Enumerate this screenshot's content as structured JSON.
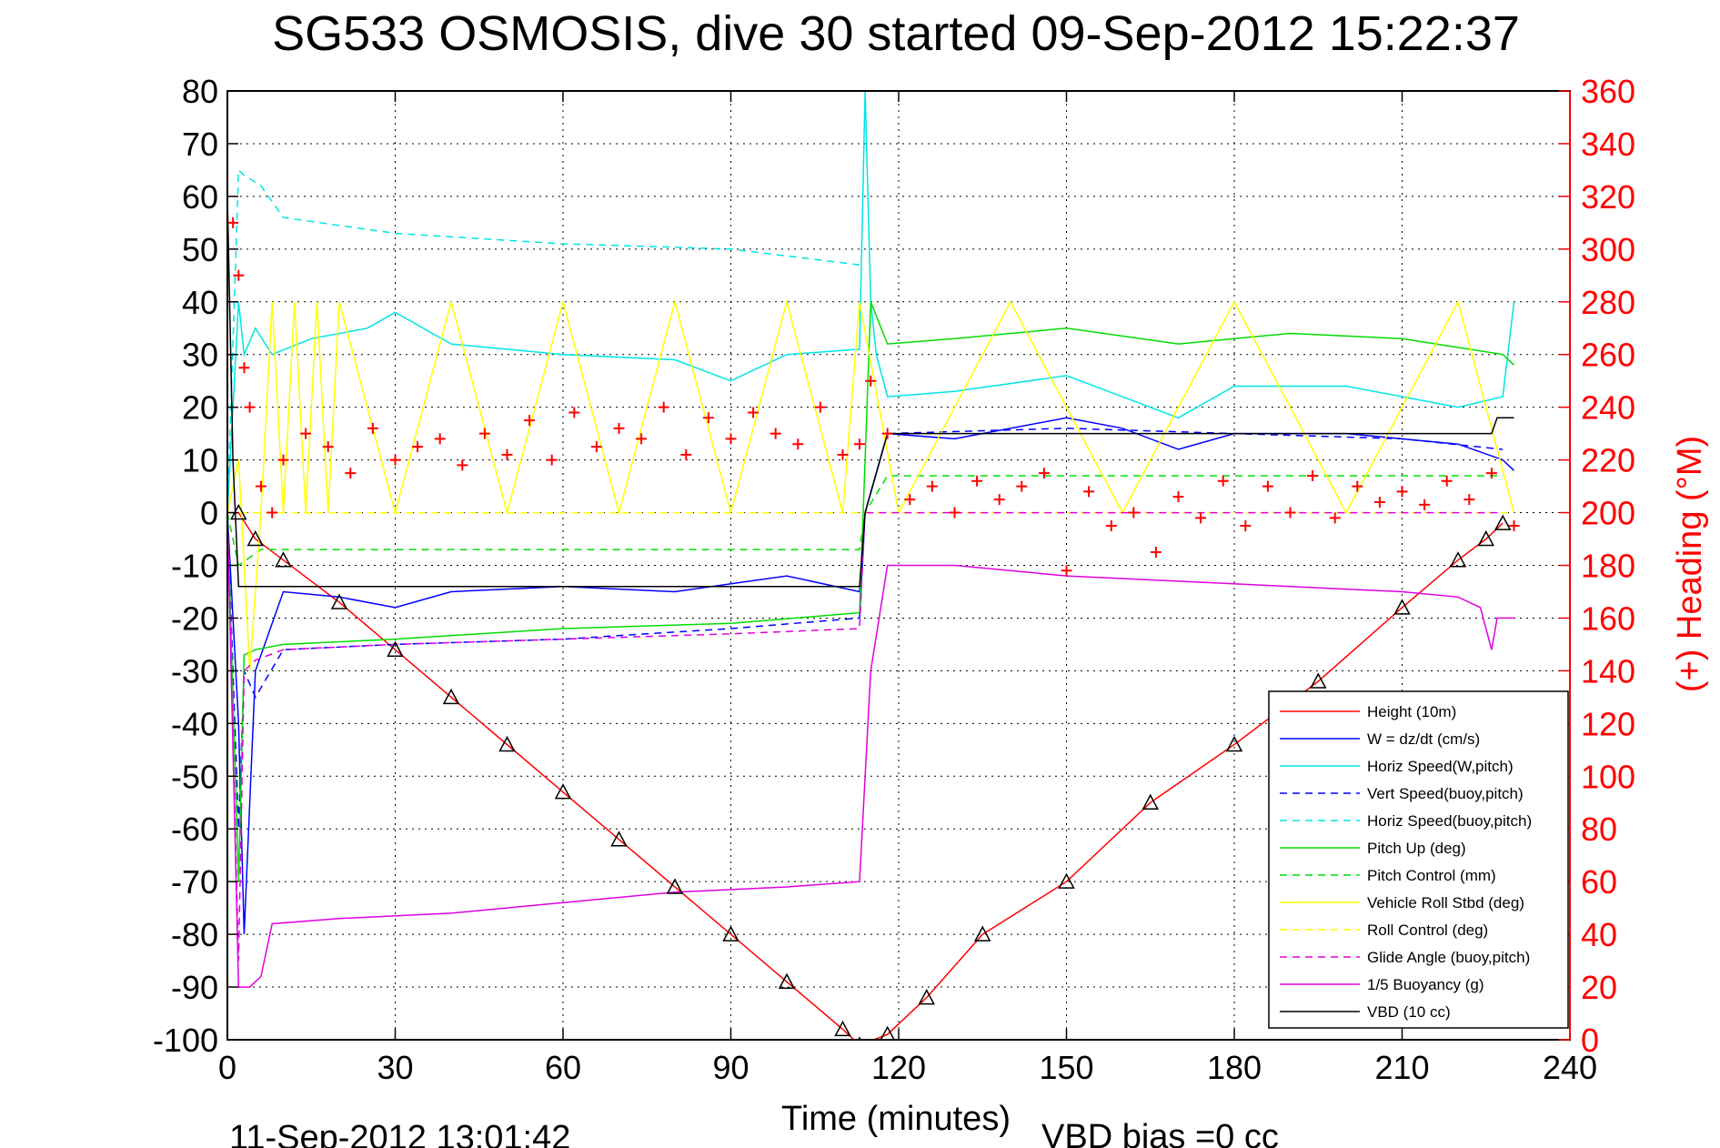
{
  "chart_data": {
    "type": "line",
    "title": "SG533 OSMOSIS, dive 30 started 09-Sep-2012 15:22:37",
    "xlabel": "Time (minutes)",
    "ylabel_right": "(+) Heading (°M)",
    "xlim": [
      0,
      240
    ],
    "ylim": [
      -100,
      80
    ],
    "ylim_right": [
      0,
      360
    ],
    "x_ticks": [
      0,
      30,
      60,
      90,
      120,
      150,
      180,
      210,
      240
    ],
    "y_ticks": [
      -100,
      -90,
      -80,
      -70,
      -60,
      -50,
      -40,
      -30,
      -20,
      -10,
      0,
      10,
      20,
      30,
      40,
      50,
      60,
      70,
      80
    ],
    "y_ticks_right": [
      0,
      20,
      40,
      60,
      80,
      100,
      120,
      140,
      160,
      180,
      200,
      220,
      240,
      260,
      280,
      300,
      320,
      340,
      360
    ],
    "grid": true,
    "legend_position": "bottom-right",
    "footer_left": "11-Sep-2012 13:01:42",
    "footer_right": "VBD bias =0 cc",
    "series": [
      {
        "name": "Height (10m)",
        "color": "#ff0000",
        "style": "solid",
        "x": [
          0,
          2,
          5,
          10,
          20,
          30,
          40,
          50,
          60,
          70,
          80,
          90,
          100,
          110,
          113,
          118,
          125,
          135,
          150,
          165,
          180,
          195,
          210,
          220,
          225,
          228
        ],
        "y": [
          0,
          0,
          -5,
          -9,
          -17,
          -26,
          -35,
          -44,
          -53,
          -62,
          -71,
          -80,
          -89,
          -98,
          -101,
          -99,
          -92,
          -80,
          -70,
          -55,
          -44,
          -32,
          -18,
          -9,
          -5,
          -2
        ]
      },
      {
        "name": "W = dz/dt (cm/s)",
        "color": "#0000ff",
        "style": "solid",
        "x": [
          0,
          2,
          3,
          5,
          10,
          20,
          30,
          40,
          60,
          80,
          100,
          113,
          114,
          118,
          130,
          150,
          160,
          170,
          180,
          200,
          220,
          228,
          230
        ],
        "y": [
          0,
          -40,
          -80,
          -30,
          -15,
          -16,
          -18,
          -15,
          -14,
          -15,
          -12,
          -15,
          0,
          15,
          14,
          18,
          16,
          12,
          15,
          15,
          13,
          10,
          8
        ]
      },
      {
        "name": "Horiz Speed(W,pitch)",
        "color": "#00e5e5",
        "style": "solid",
        "x": [
          0,
          2,
          3,
          5,
          8,
          15,
          25,
          30,
          40,
          60,
          80,
          90,
          100,
          113,
          114,
          115,
          116,
          118,
          130,
          150,
          160,
          170,
          180,
          200,
          220,
          228,
          230
        ],
        "y": [
          0,
          40,
          30,
          35,
          30,
          33,
          35,
          38,
          32,
          30,
          29,
          25,
          30,
          31,
          80,
          40,
          30,
          22,
          23,
          26,
          22,
          18,
          24,
          24,
          20,
          22,
          40
        ]
      },
      {
        "name": "Vert Speed(buoy,pitch)",
        "color": "#0000ff",
        "style": "dashed",
        "x": [
          0,
          2,
          3,
          5,
          10,
          30,
          60,
          90,
          113,
          114,
          118,
          150,
          180,
          210,
          228
        ],
        "y": [
          0,
          -60,
          -30,
          -35,
          -26,
          -25,
          -24,
          -22,
          -20,
          0,
          15,
          16,
          15,
          14,
          12
        ]
      },
      {
        "name": "Horiz Speed(buoy,pitch)",
        "color": "#00e5e5",
        "style": "dashed",
        "x": [
          0,
          2,
          3,
          6,
          10,
          30,
          60,
          90,
          113,
          114
        ],
        "y": [
          0,
          65,
          64,
          62,
          56,
          53,
          51,
          50,
          47,
          47
        ]
      },
      {
        "name": "Pitch Up (deg)",
        "color": "#00dd00",
        "style": "solid",
        "x": [
          0,
          2,
          3,
          5,
          10,
          30,
          60,
          90,
          113,
          114,
          115,
          118,
          130,
          150,
          170,
          190,
          210,
          228,
          230
        ],
        "y": [
          0,
          -70,
          -27,
          -26,
          -25,
          -24,
          -22,
          -21,
          -19,
          10,
          40,
          32,
          33,
          35,
          32,
          34,
          33,
          30,
          28
        ]
      },
      {
        "name": "Pitch Control (mm)",
        "color": "#00dd00",
        "style": "dashed",
        "x": [
          0,
          2,
          6,
          10,
          30,
          60,
          90,
          113,
          114,
          118,
          150,
          180,
          210,
          228
        ],
        "y": [
          0,
          -10,
          -7,
          -7,
          -7,
          -7,
          -7,
          -7,
          0,
          7,
          7,
          7,
          7,
          7
        ]
      },
      {
        "name": "Vehicle Roll Stbd (deg)",
        "color": "#ffff00",
        "style": "solid",
        "x": [
          0,
          2,
          4,
          6,
          8,
          10,
          12,
          14,
          16,
          18,
          20,
          30,
          40,
          50,
          60,
          70,
          80,
          90,
          100,
          110,
          113,
          120,
          140,
          160,
          180,
          200,
          220,
          230
        ],
        "y": [
          0,
          10,
          -30,
          0,
          40,
          0,
          40,
          0,
          40,
          0,
          40,
          0,
          40,
          0,
          40,
          0,
          40,
          0,
          40,
          0,
          40,
          0,
          40,
          0,
          40,
          0,
          40,
          0
        ]
      },
      {
        "name": "Roll Control (deg)",
        "color": "#ffff00",
        "style": "dashed",
        "x": [
          0,
          2,
          5,
          10,
          30,
          60,
          90,
          113,
          118,
          150,
          180,
          210,
          230
        ],
        "y": [
          0,
          0,
          0,
          0,
          0,
          0,
          0,
          0,
          0,
          0,
          0,
          0,
          0
        ]
      },
      {
        "name": "Glide Angle (buoy,pitch)",
        "color": "#e000e0",
        "style": "dashed",
        "x": [
          0,
          2,
          3,
          5,
          10,
          30,
          60,
          90,
          113,
          114,
          118,
          150,
          180,
          210,
          228
        ],
        "y": [
          0,
          -85,
          -30,
          -28,
          -26,
          -25,
          -24,
          -23,
          -22,
          0,
          0,
          0,
          0,
          0,
          0
        ]
      },
      {
        "name": "1/5 Buoyancy (g)",
        "color": "#e000e0",
        "style": "solid",
        "x": [
          0,
          2,
          4,
          6,
          8,
          20,
          40,
          60,
          80,
          100,
          113,
          115,
          118,
          130,
          150,
          170,
          190,
          210,
          220,
          224,
          226,
          227,
          228,
          230
        ],
        "y": [
          0,
          -90,
          -90,
          -88,
          -78,
          -77,
          -76,
          -74,
          -72,
          -71,
          -70,
          -30,
          -10,
          -10,
          -12,
          -13,
          -14,
          -15,
          -16,
          -18,
          -26,
          -20,
          -20,
          -20
        ]
      },
      {
        "name": "VBD (10 cc)",
        "color": "#000000",
        "style": "solid",
        "x": [
          0,
          1,
          2,
          3,
          113,
          114,
          118,
          226,
          227,
          230
        ],
        "y": [
          60,
          10,
          -14,
          -14,
          -14,
          0,
          15,
          15,
          18,
          18
        ]
      }
    ],
    "heading_series": {
      "name": "Heading",
      "color": "#ff0000",
      "marker": "+",
      "x": [
        1,
        2,
        3,
        4,
        6,
        8,
        10,
        14,
        18,
        22,
        26,
        30,
        34,
        38,
        42,
        46,
        50,
        54,
        58,
        62,
        66,
        70,
        74,
        78,
        82,
        86,
        90,
        94,
        98,
        102,
        106,
        110,
        113,
        115,
        118,
        122,
        126,
        130,
        134,
        138,
        142,
        146,
        150,
        154,
        158,
        162,
        166,
        170,
        174,
        178,
        182,
        186,
        190,
        194,
        198,
        202,
        206,
        210,
        214,
        218,
        222,
        226,
        230
      ],
      "y": [
        310,
        290,
        255,
        240,
        210,
        200,
        220,
        230,
        225,
        215,
        232,
        220,
        225,
        228,
        218,
        230,
        222,
        235,
        220,
        238,
        225,
        232,
        228,
        240,
        222,
        236,
        228,
        238,
        230,
        226,
        240,
        222,
        226,
        250,
        230,
        205,
        210,
        200,
        212,
        205,
        210,
        215,
        178,
        208,
        195,
        200,
        185,
        206,
        198,
        212,
        195,
        210,
        200,
        214,
        198,
        210,
        204,
        208,
        203,
        212,
        205,
        215,
        195
      ]
    }
  }
}
